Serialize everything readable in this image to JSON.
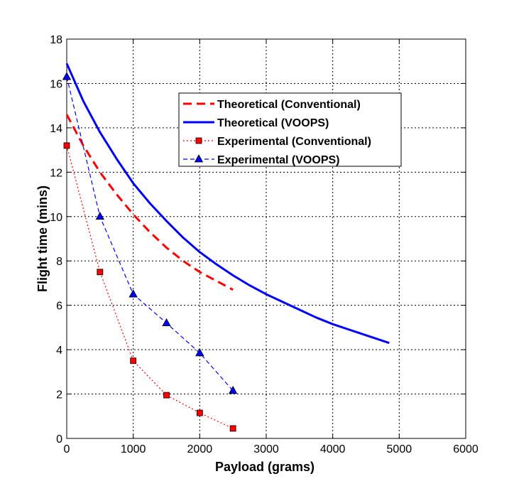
{
  "chart_data": {
    "type": "line",
    "xlabel": "Payload (grams)",
    "ylabel": "Flight time (mins)",
    "xlim": [
      0,
      6000
    ],
    "ylim": [
      0,
      18
    ],
    "xticks": [
      0,
      1000,
      2000,
      3000,
      4000,
      5000,
      6000
    ],
    "yticks": [
      0,
      2,
      4,
      6,
      8,
      10,
      12,
      14,
      16,
      18
    ],
    "grid": true,
    "legend_position": "top-right",
    "series": [
      {
        "name": "Theoretical (Conventional)",
        "color": "#ff0000",
        "style": "dashed",
        "marker": "none",
        "x": [
          0,
          250,
          500,
          750,
          1000,
          1250,
          1500,
          1750,
          2000,
          2250,
          2500
        ],
        "y": [
          14.6,
          13.2,
          12.0,
          11.0,
          10.1,
          9.3,
          8.6,
          8.0,
          7.5,
          7.1,
          6.7
        ]
      },
      {
        "name": "Theoretical (VOOPS)",
        "color": "#0000ff",
        "style": "solid",
        "marker": "none",
        "x": [
          0,
          250,
          500,
          750,
          1000,
          1250,
          1500,
          1750,
          2000,
          2250,
          2500,
          2750,
          3000,
          3250,
          3500,
          3750,
          4000,
          4250,
          4500,
          4750,
          4850
        ],
        "y": [
          16.9,
          15.2,
          13.8,
          12.6,
          11.5,
          10.6,
          9.8,
          9.05,
          8.4,
          7.85,
          7.35,
          6.9,
          6.5,
          6.15,
          5.8,
          5.45,
          5.15,
          4.9,
          4.65,
          4.4,
          4.3
        ]
      },
      {
        "name": "Experimental (Conventional)",
        "color": "#ff0000",
        "style": "dotted",
        "marker": "square",
        "x": [
          0,
          500,
          1000,
          1500,
          2000,
          2500
        ],
        "y": [
          13.2,
          7.5,
          3.5,
          1.95,
          1.15,
          0.45
        ]
      },
      {
        "name": "Experimental (VOOPS)",
        "color": "#0000ff",
        "style": "dashed",
        "marker": "triangle",
        "x": [
          0,
          500,
          1000,
          1500,
          2000,
          2500
        ],
        "y": [
          16.3,
          10.0,
          6.5,
          5.2,
          3.85,
          2.15
        ]
      }
    ]
  }
}
